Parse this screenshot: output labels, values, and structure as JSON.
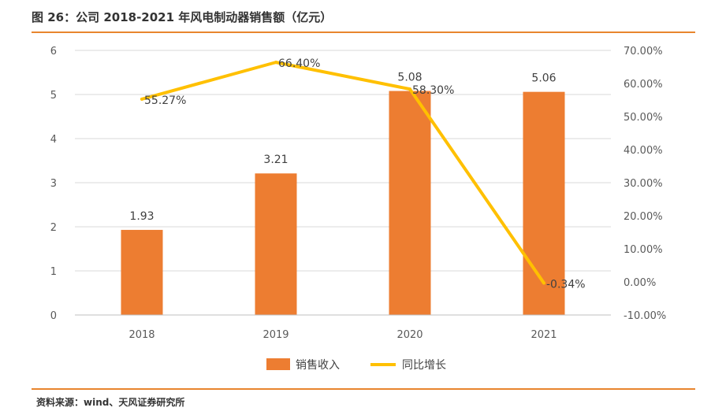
{
  "header": {
    "title": "图 26：公司 2018-2021 年风电制动器销售额（亿元）"
  },
  "footer": {
    "source": "资料来源：wind、天风证券研究所"
  },
  "colors": {
    "bar": "#ED7D31",
    "line": "#FFC000",
    "rule": "#E8852E",
    "grid": "#D9D9D9"
  },
  "chart_data": {
    "type": "bar",
    "categories": [
      "2018",
      "2019",
      "2020",
      "2021"
    ],
    "series": [
      {
        "name": "销售收入",
        "type": "bar",
        "axis": "left",
        "values": [
          1.93,
          3.21,
          5.08,
          5.06
        ],
        "labels": [
          "1.93",
          "3.21",
          "5.08",
          "5.06"
        ]
      },
      {
        "name": "同比增长",
        "type": "line",
        "axis": "right",
        "values": [
          55.27,
          66.4,
          58.3,
          -0.34
        ],
        "labels": [
          "55.27%",
          "66.40%",
          "58.30%",
          "-0.34%"
        ]
      }
    ],
    "y_left": {
      "min": 0,
      "max": 6,
      "ticks": [
        "0",
        "1",
        "2",
        "3",
        "4",
        "5",
        "6"
      ]
    },
    "y_right": {
      "min": -10,
      "max": 70,
      "ticks": [
        "-10.00%",
        "0.00%",
        "10.00%",
        "20.00%",
        "30.00%",
        "40.00%",
        "50.00%",
        "60.00%",
        "70.00%"
      ]
    },
    "grid": true,
    "legend_position": "bottom"
  }
}
